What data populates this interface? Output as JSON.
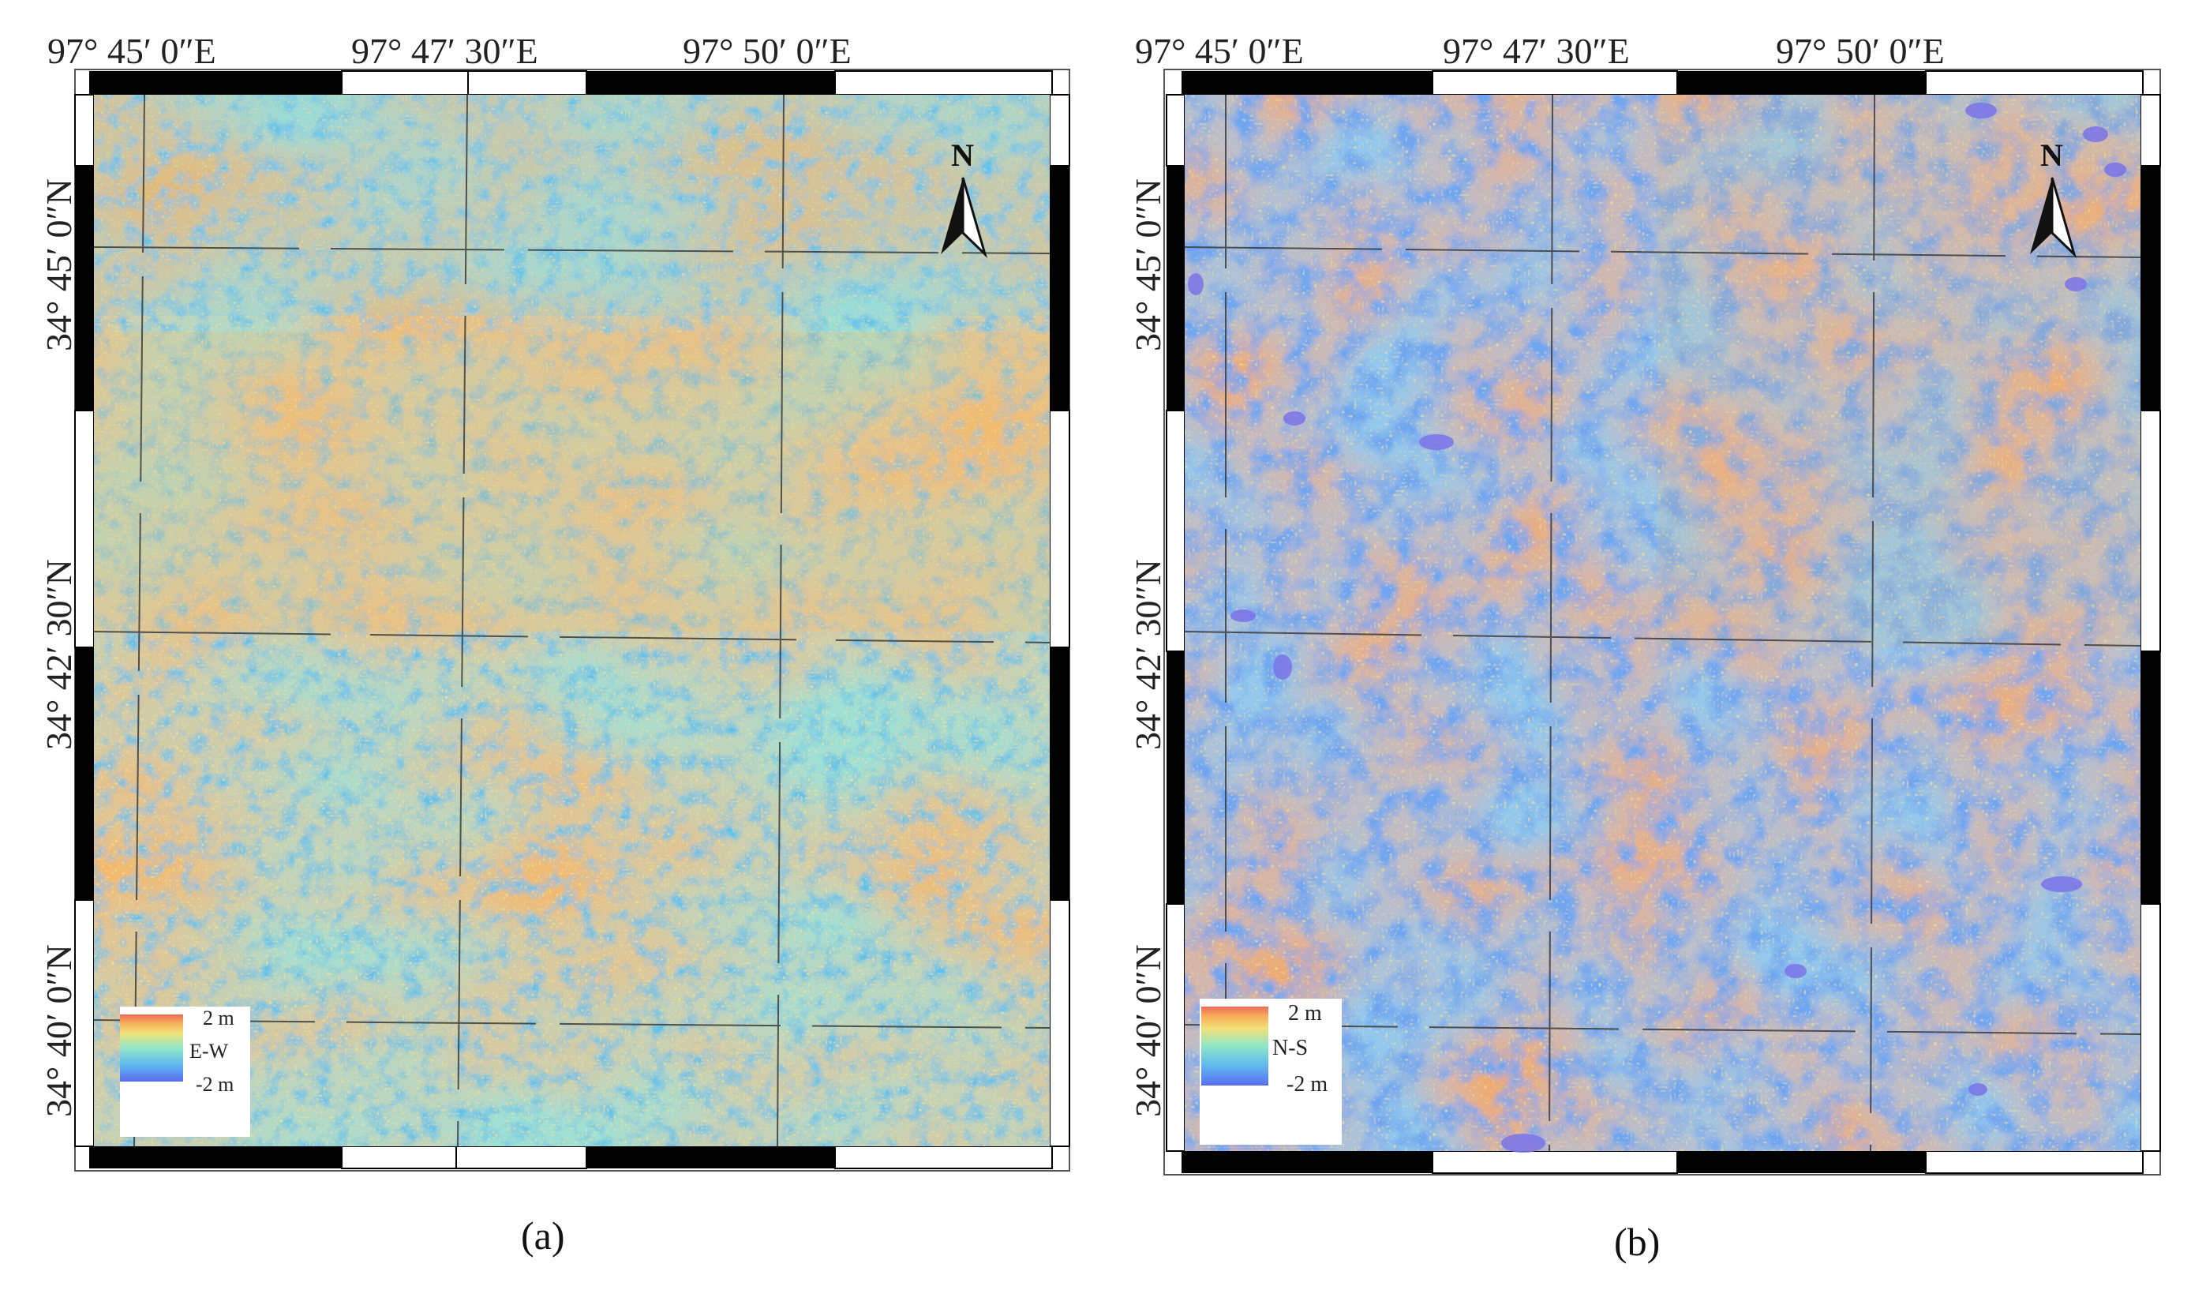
{
  "panels": [
    {
      "id": "a",
      "caption": "(a)",
      "top_labels": [
        "97°  45′ 0″E",
        "97°  47′ 30″E",
        "97°  50′ 0″E"
      ],
      "left_labels": [
        "34°  45′ 0″N",
        "34°  42′ 30″N",
        "34°  40′ 0″N"
      ],
      "north_arrow_label": "N",
      "legend": {
        "max_label": "2 m",
        "component_label": "E-W",
        "min_label": "-2 m"
      }
    },
    {
      "id": "b",
      "caption": "(b)",
      "top_labels": [
        "97°  45′ 0″E",
        "97°  47′ 30″E",
        "97°  50′ 0″E"
      ],
      "left_labels": [
        "34°  45′ 0″N",
        "34°  42′ 30″N",
        "34°  40′ 0″N"
      ],
      "north_arrow_label": "N",
      "legend": {
        "max_label": "2 m",
        "component_label": "N-S",
        "min_label": "-2 m"
      }
    }
  ],
  "colors": {
    "colormap": [
      "#5a6cf0",
      "#5fb8ee",
      "#8fe6c8",
      "#f2e27a",
      "#f7b15a",
      "#ee6a5a"
    ],
    "frame": "#000000",
    "grid": "#3b3b3b"
  }
}
